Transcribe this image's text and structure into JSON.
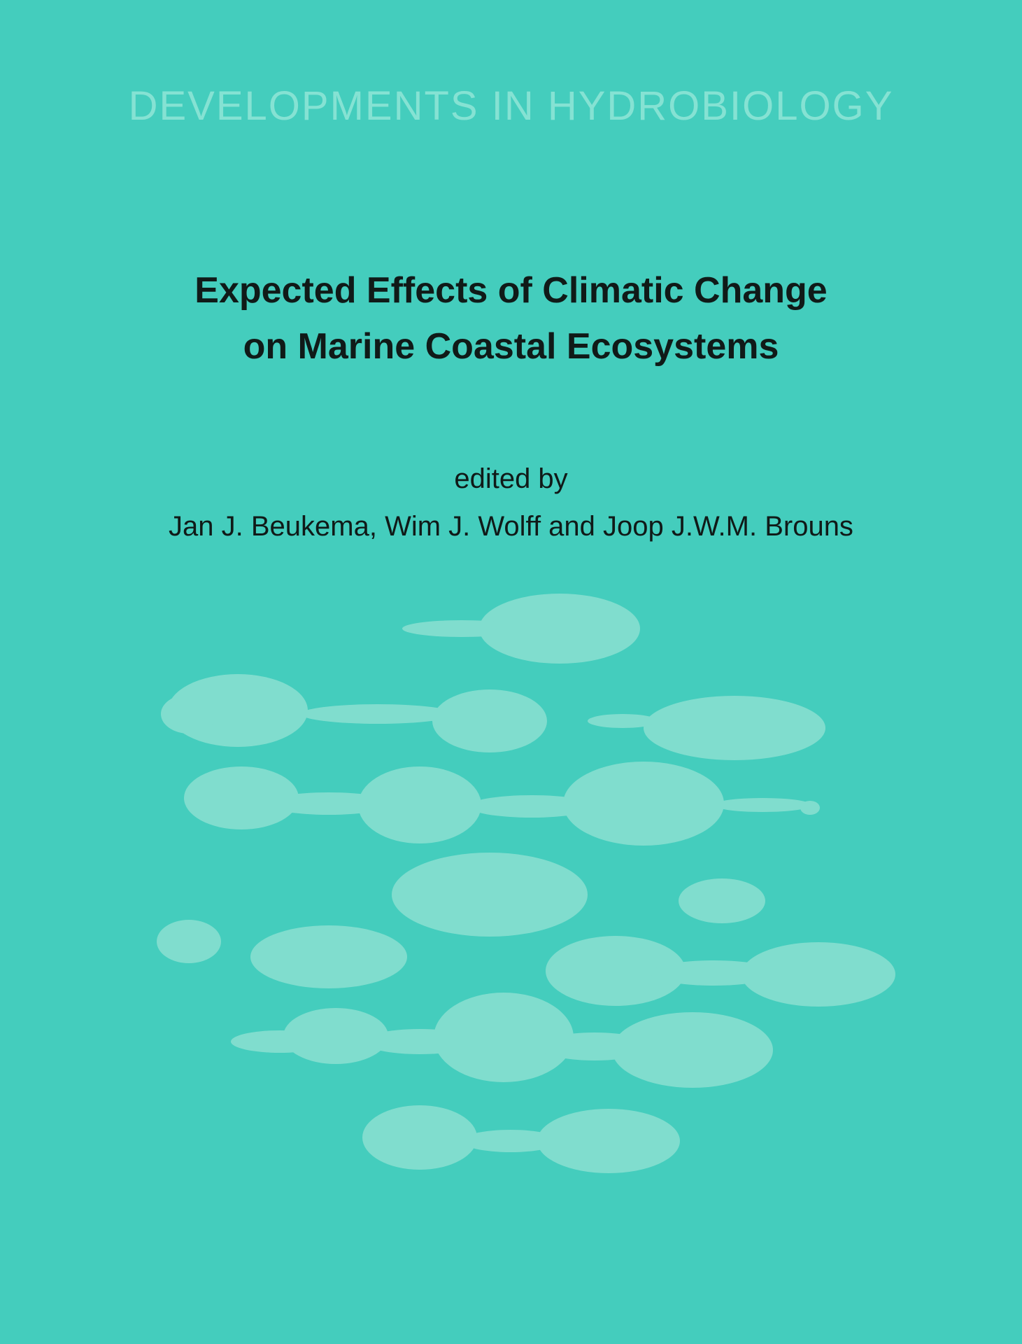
{
  "cover": {
    "series": "DEVELOPMENTS IN HYDROBIOLOGY",
    "title_line1": "Expected Effects of Climatic Change",
    "title_line2": "on Marine Coastal Ecosystems",
    "edited_by": "edited by",
    "authors": "Jan J. Beukema, Wim J. Wolff and Joop J.W.M. Brouns"
  },
  "colors": {
    "background": "#44cdbd",
    "series_text": "#85e2d3",
    "title_text": "#101a18",
    "blobs": "#80ddce"
  }
}
